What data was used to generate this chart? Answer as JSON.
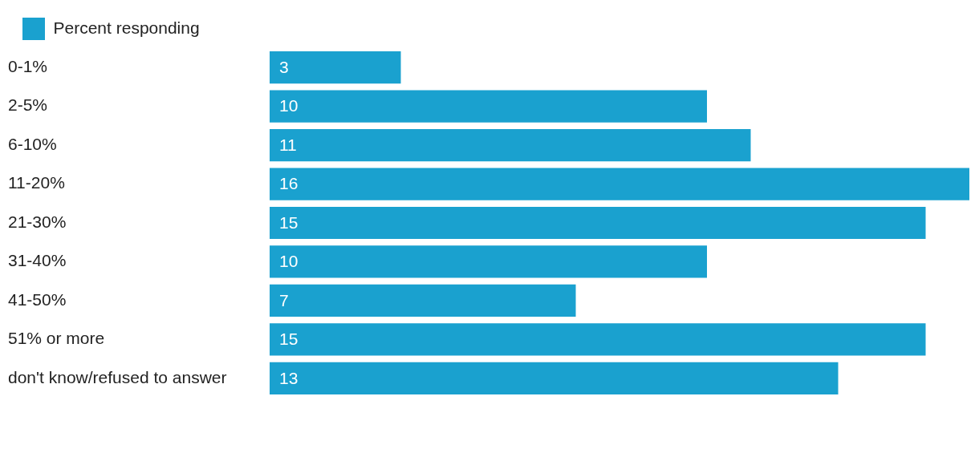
{
  "chart_data": {
    "type": "bar",
    "orientation": "horizontal",
    "categories": [
      "0-1%",
      "2-5%",
      "6-10%",
      "11-20%",
      "21-30%",
      "31-40%",
      "41-50%",
      "51% or more",
      "don't know/refused to answer"
    ],
    "series": [
      {
        "name": "Percent responding",
        "color": "#1aa1cf",
        "values": [
          3,
          10,
          11,
          16,
          15,
          10,
          7,
          15,
          13
        ]
      }
    ],
    "xlim": [
      0,
      16
    ],
    "tick_labels": "y",
    "legend": "top left",
    "data_labels": true
  }
}
